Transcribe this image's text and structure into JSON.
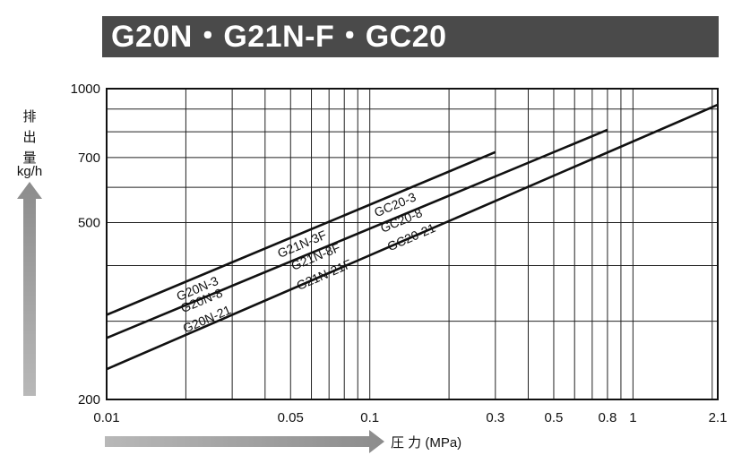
{
  "title": "G20N・G21N-F・GC20",
  "chart_data": {
    "type": "line",
    "xscale": "log",
    "yscale": "log",
    "xlim": [
      0.01,
      2.1
    ],
    "ylim": [
      200,
      1000
    ],
    "xlabel": "圧 力 (MPa)",
    "ylabel": [
      "排",
      "出",
      "量",
      "kg/h"
    ],
    "x_ticks": [
      {
        "v": 0.01,
        "label": "0.01"
      },
      {
        "v": 0.05,
        "label": "0.05"
      },
      {
        "v": 0.1,
        "label": "0.1"
      },
      {
        "v": 0.3,
        "label": "0.3"
      },
      {
        "v": 0.5,
        "label": "0.5"
      },
      {
        "v": 0.8,
        "label": "0.8"
      },
      {
        "v": 1,
        "label": "1"
      },
      {
        "v": 2.1,
        "label": "2.1"
      }
    ],
    "x_grid": [
      0.02,
      0.03,
      0.04,
      0.05,
      0.06,
      0.07,
      0.08,
      0.09,
      0.1,
      0.2,
      0.3,
      0.4,
      0.5,
      0.6,
      0.7,
      0.8,
      0.9,
      1,
      2
    ],
    "y_ticks": [
      {
        "v": 200,
        "label": "200"
      },
      {
        "v": 500,
        "label": "500"
      },
      {
        "v": 700,
        "label": "700"
      },
      {
        "v": 1000,
        "label": "1000"
      }
    ],
    "y_grid": [
      300,
      400,
      500,
      600,
      700,
      800,
      900
    ],
    "series": [
      {
        "x": [
          0.01,
          0.3
        ],
        "y": [
          310,
          720
        ],
        "labels": [
          {
            "text": "G20N-3",
            "x": 0.0188,
            "y": 333
          },
          {
            "text": "G21N-3F",
            "x": 0.0455,
            "y": 416
          },
          {
            "text": "GC20-3",
            "x": 0.106,
            "y": 514
          }
        ]
      },
      {
        "x": [
          0.01,
          0.8
        ],
        "y": [
          275,
          808
        ],
        "labels": [
          {
            "text": "G20N-8",
            "x": 0.0195,
            "y": 313
          },
          {
            "text": "G21N-8F",
            "x": 0.0513,
            "y": 390
          },
          {
            "text": "GC20-8",
            "x": 0.112,
            "y": 474
          }
        ]
      },
      {
        "x": [
          0.01,
          2.1
        ],
        "y": [
          234,
          920
        ],
        "labels": [
          {
            "text": "G20N-21",
            "x": 0.0199,
            "y": 282
          },
          {
            "text": "G21N-21F",
            "x": 0.0538,
            "y": 352
          },
          {
            "text": "GC20-21",
            "x": 0.119,
            "y": 431
          }
        ]
      }
    ]
  }
}
